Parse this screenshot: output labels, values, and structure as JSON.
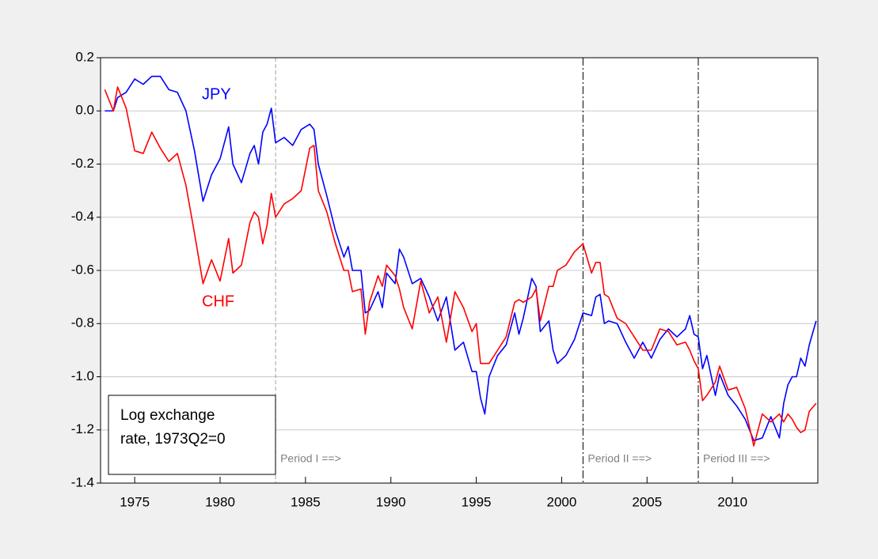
{
  "chart_data": {
    "type": "line",
    "x": [
      1973.25,
      1973.75,
      1974.0,
      1974.5,
      1975.0,
      1975.5,
      1976.0,
      1976.5,
      1977.0,
      1977.5,
      1978.0,
      1978.5,
      1979.0,
      1979.5,
      1980.0,
      1980.5,
      1980.75,
      1981.25,
      1981.75,
      1982.0,
      1982.25,
      1982.5,
      1982.75,
      1983.0,
      1983.25,
      1983.75,
      1984.25,
      1984.75,
      1985.25,
      1985.5,
      1985.75,
      1986.25,
      1986.75,
      1987.25,
      1987.5,
      1987.75,
      1988.25,
      1988.5,
      1988.75,
      1989.25,
      1989.5,
      1989.75,
      1990.25,
      1990.5,
      1990.75,
      1991.25,
      1991.75,
      1992.25,
      1992.75,
      1993.25,
      1993.75,
      1994.25,
      1994.75,
      1995.0,
      1995.25,
      1995.5,
      1995.75,
      1996.25,
      1996.75,
      1997.25,
      1997.5,
      1997.75,
      1998.25,
      1998.5,
      1998.75,
      1999.25,
      1999.5,
      1999.75,
      2000.25,
      2000.75,
      2001.25,
      2001.75,
      2002.0,
      2002.25,
      2002.5,
      2002.75,
      2003.25,
      2003.75,
      2004.25,
      2004.75,
      2005.25,
      2005.75,
      2006.25,
      2006.75,
      2007.25,
      2007.5,
      2007.75,
      2008.0,
      2008.25,
      2008.5,
      2009.0,
      2009.25,
      2009.75,
      2010.25,
      2010.75,
      2011.25,
      2011.75,
      2012.25,
      2012.75,
      2013.0,
      2013.25,
      2013.5,
      2013.75,
      2014.0,
      2014.25,
      2014.5,
      2014.9
    ],
    "series": [
      {
        "name": "JPY",
        "color": "#0000ff",
        "values": [
          0.0,
          0.0,
          0.05,
          0.07,
          0.12,
          0.1,
          0.13,
          0.13,
          0.08,
          0.07,
          0.0,
          -0.15,
          -0.34,
          -0.24,
          -0.18,
          -0.06,
          -0.2,
          -0.27,
          -0.16,
          -0.13,
          -0.2,
          -0.08,
          -0.05,
          0.01,
          -0.12,
          -0.1,
          -0.13,
          -0.07,
          -0.05,
          -0.07,
          -0.2,
          -0.32,
          -0.45,
          -0.55,
          -0.51,
          -0.6,
          -0.6,
          -0.76,
          -0.75,
          -0.68,
          -0.74,
          -0.61,
          -0.65,
          -0.52,
          -0.55,
          -0.65,
          -0.63,
          -0.7,
          -0.79,
          -0.7,
          -0.9,
          -0.87,
          -0.98,
          -0.98,
          -1.08,
          -1.14,
          -1.0,
          -0.92,
          -0.88,
          -0.76,
          -0.84,
          -0.78,
          -0.63,
          -0.66,
          -0.83,
          -0.79,
          -0.9,
          -0.95,
          -0.92,
          -0.86,
          -0.76,
          -0.77,
          -0.7,
          -0.69,
          -0.8,
          -0.79,
          -0.8,
          -0.87,
          -0.93,
          -0.87,
          -0.93,
          -0.86,
          -0.82,
          -0.85,
          -0.82,
          -0.77,
          -0.84,
          -0.85,
          -0.97,
          -0.92,
          -1.07,
          -0.99,
          -1.07,
          -1.11,
          -1.16,
          -1.24,
          -1.23,
          -1.15,
          -1.23,
          -1.1,
          -1.03,
          -1.0,
          -1.0,
          -0.93,
          -0.96,
          -0.88,
          -0.79
        ]
      },
      {
        "name": "CHF",
        "color": "#ff0000",
        "values": [
          0.08,
          0.0,
          0.09,
          0.01,
          -0.15,
          -0.16,
          -0.08,
          -0.14,
          -0.19,
          -0.16,
          -0.28,
          -0.46,
          -0.65,
          -0.56,
          -0.64,
          -0.48,
          -0.61,
          -0.58,
          -0.42,
          -0.38,
          -0.4,
          -0.5,
          -0.43,
          -0.31,
          -0.4,
          -0.35,
          -0.33,
          -0.3,
          -0.14,
          -0.13,
          -0.3,
          -0.38,
          -0.5,
          -0.6,
          -0.6,
          -0.68,
          -0.67,
          -0.84,
          -0.72,
          -0.62,
          -0.66,
          -0.58,
          -0.62,
          -0.67,
          -0.74,
          -0.82,
          -0.64,
          -0.76,
          -0.7,
          -0.87,
          -0.68,
          -0.74,
          -0.83,
          -0.8,
          -0.95,
          -0.95,
          -0.95,
          -0.9,
          -0.85,
          -0.72,
          -0.71,
          -0.72,
          -0.7,
          -0.67,
          -0.79,
          -0.66,
          -0.66,
          -0.6,
          -0.58,
          -0.53,
          -0.5,
          -0.61,
          -0.57,
          -0.57,
          -0.69,
          -0.7,
          -0.78,
          -0.8,
          -0.85,
          -0.9,
          -0.9,
          -0.82,
          -0.83,
          -0.88,
          -0.87,
          -0.9,
          -0.94,
          -0.97,
          -1.09,
          -1.07,
          -1.02,
          -0.96,
          -1.05,
          -1.04,
          -1.12,
          -1.26,
          -1.14,
          -1.17,
          -1.14,
          -1.17,
          -1.14,
          -1.16,
          -1.19,
          -1.21,
          -1.2,
          -1.13,
          -1.1
        ]
      }
    ],
    "xlim": [
      1973,
      2015
    ],
    "xticks": [
      1975,
      1980,
      1985,
      1990,
      1995,
      2000,
      2005,
      2010
    ],
    "ylim": [
      -1.4,
      0.2
    ],
    "yticks": [
      {
        "value": -1.4,
        "label": "-1.4"
      },
      -1.2,
      {
        "value": -1,
        "label": "-1.0"
      },
      -0.8,
      -0.6,
      -0.4,
      -0.2,
      {
        "value": 0,
        "label": "0.0"
      },
      0.2
    ],
    "grid": true,
    "vlines": [
      {
        "x": 1983.25,
        "label": "Period I ==>",
        "color": "#a0a0a0"
      },
      {
        "x": 2001.25,
        "label": "Period II ==>",
        "color": "#000000"
      },
      {
        "x": 2008.0,
        "label": "Period III ==>",
        "color": "#000000"
      }
    ],
    "legend_box": [
      "Log exchange",
      "rate, 1973Q2=0"
    ]
  }
}
